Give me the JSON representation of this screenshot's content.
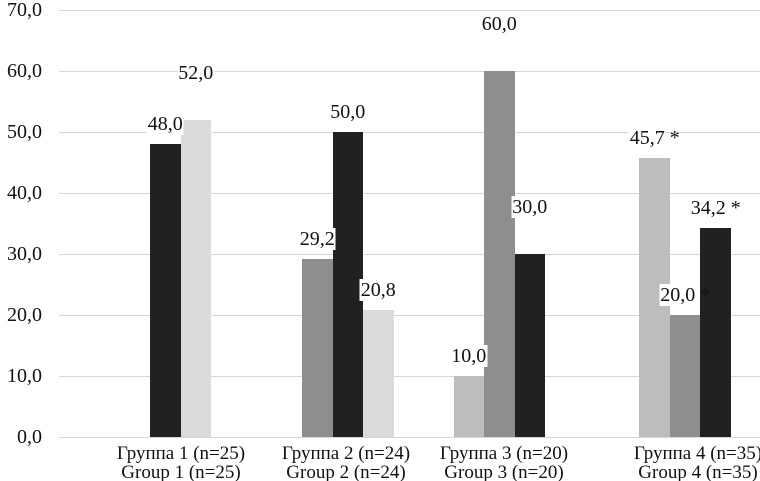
{
  "chart_data": {
    "type": "bar",
    "title": "",
    "legend": "none",
    "grid": true,
    "y_axis": {
      "min": 0,
      "max": 70,
      "step": 10,
      "tick_labels": [
        "0,0",
        "10,0",
        "20,0",
        "30,0",
        "40,0",
        "50,0",
        "60,0",
        "70,0"
      ]
    },
    "categories": [
      {
        "ru": "Группа 1 (n=25)",
        "en": "Group 1 (n=25)"
      },
      {
        "ru": "Группа 2 (n=24)",
        "en": "Group 2 (n=24)"
      },
      {
        "ru": "Группа 3 (n=20)",
        "en": "Group 3 (n=20)"
      },
      {
        "ru": "Группа 4 (n=35)",
        "en": "Group 4 (n=35)"
      }
    ],
    "series": [
      {
        "name": "light-gray",
        "color": "#bdbdbd",
        "values": [
          null,
          null,
          10.0,
          45.7
        ],
        "labels": [
          null,
          null,
          "10,0",
          "45,7 *"
        ]
      },
      {
        "name": "medium-gray",
        "color": "#8e8e8e",
        "values": [
          null,
          29.2,
          60.0,
          20.0
        ],
        "labels": [
          null,
          "29,2",
          "60,0",
          "20,0 *"
        ]
      },
      {
        "name": "black",
        "color": "#212121",
        "values": [
          48.0,
          50.0,
          30.0,
          34.2
        ],
        "labels": [
          "48,0",
          "50,0",
          "30,0",
          "34,2 *"
        ]
      },
      {
        "name": "pale-gray",
        "color": "#dbdbdb",
        "values": [
          52.0,
          20.8,
          null,
          null
        ],
        "labels": [
          "52,0",
          "20,8",
          null,
          null
        ]
      }
    ],
    "label_raise": [
      {
        "series": 3,
        "category": 0
      },
      {
        "series": 1,
        "category": 2
      },
      {
        "series": 2,
        "category": 2
      }
    ]
  }
}
